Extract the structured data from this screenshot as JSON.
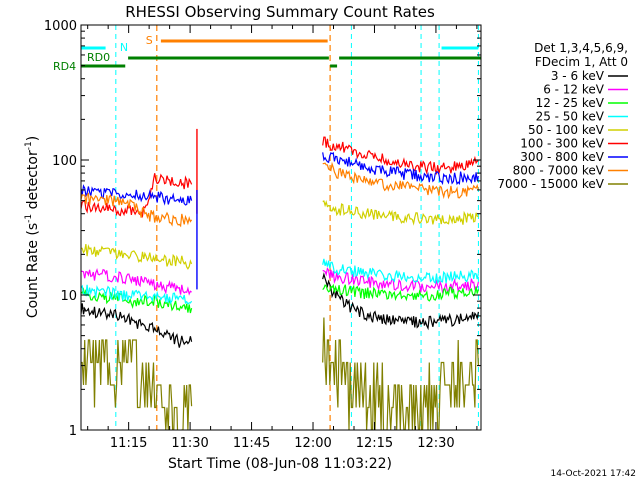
{
  "chart_data": {
    "type": "line",
    "title": "RHESSI Observing Summary Count Rates",
    "xlabel": "Start Time (08-Jun-08 11:03:22)",
    "ylabel_main": "Count Rate (s",
    "ylabel_sup1": "-1",
    "ylabel_mid": " detector",
    "ylabel_sup2": "-1",
    "ylabel_end": ")",
    "yscale": "log",
    "xlim": [
      "11:03:22",
      "12:41:00"
    ],
    "ylim": [
      1,
      1000
    ],
    "x_ticks": [
      "11:15",
      "11:30",
      "11:45",
      "12:00",
      "12:15",
      "12:30"
    ],
    "y_ticks": [
      "1",
      "10",
      "100",
      "1000"
    ],
    "legend_header": [
      "Det 1,3,4,5,6,9,",
      "FDecim 1, Att 0"
    ],
    "legend_position": "right",
    "timestamp": "14-Oct-2021 17:42",
    "flag_labels": {
      "n": "N",
      "s": "S",
      "rd0": "RD0",
      "rd4": "RD4"
    },
    "colors": {
      "n_flag": "#00ffff",
      "s_flag": "#ff8000",
      "rd_flag": "#008000",
      "axis": "#000000"
    },
    "series": [
      {
        "name": "3 - 6 keV",
        "color": "#000000",
        "segments": [
          {
            "x": [
              0,
              3,
              6,
              9,
              12,
              15,
              18,
              21,
              24,
              27
            ],
            "y": [
              8,
              7.5,
              7.2,
              7,
              6.5,
              6,
              5.5,
              5,
              4.5,
              4.5
            ]
          },
          {
            "x": [
              59,
              61,
              63,
              66,
              70,
              75,
              80,
              85,
              90,
              95,
              97
            ],
            "y": [
              14,
              11,
              9.5,
              8,
              7,
              6.5,
              6.3,
              6.3,
              6.5,
              6.8,
              7.5
            ]
          }
        ]
      },
      {
        "name": "6 - 12 keV",
        "color": "#ff00ff",
        "segments": [
          {
            "x": [
              0,
              3,
              6,
              9,
              12,
              15,
              18,
              21,
              24,
              27
            ],
            "y": [
              15,
              14,
              14,
              13.5,
              13,
              12.5,
              12,
              11.5,
              11,
              10.5
            ]
          },
          {
            "x": [
              59,
              61,
              63,
              66,
              70,
              75,
              80,
              85,
              90,
              95,
              97
            ],
            "y": [
              15,
              14,
              13.5,
              13,
              12.5,
              12,
              11.5,
              11.5,
              11.5,
              12,
              12.5
            ]
          }
        ]
      },
      {
        "name": "12 - 25 keV",
        "color": "#00ff00",
        "segments": [
          {
            "x": [
              0,
              3,
              6,
              9,
              12,
              15,
              18,
              21,
              24,
              27
            ],
            "y": [
              10,
              10,
              9.5,
              9.5,
              9,
              9,
              9,
              8.5,
              8.5,
              8
            ]
          },
          {
            "x": [
              59,
              61,
              63,
              66,
              70,
              75,
              80,
              85,
              90,
              95,
              97
            ],
            "y": [
              12,
              11.5,
              11,
              10.5,
              10.3,
              10,
              10,
              10,
              10.3,
              10.5,
              11
            ]
          }
        ]
      },
      {
        "name": "25 - 50 keV",
        "color": "#00ffff",
        "segments": [
          {
            "x": [
              0,
              3,
              6,
              9,
              12,
              15,
              18,
              21,
              24,
              27
            ],
            "y": [
              11,
              10.5,
              10.5,
              10,
              10,
              10,
              9.8,
              9.5,
              9.5,
              9
            ]
          },
          {
            "x": [
              59,
              61,
              63,
              66,
              70,
              75,
              80,
              85,
              90,
              95,
              97
            ],
            "y": [
              17,
              16,
              15.5,
              15,
              14.5,
              14,
              13.5,
              13.5,
              13.5,
              14,
              14.5
            ]
          }
        ]
      },
      {
        "name": "50 - 100 keV",
        "color": "#d0d000",
        "segments": [
          {
            "x": [
              0,
              3,
              6,
              9,
              12,
              15,
              18,
              21,
              24,
              27
            ],
            "y": [
              22,
              21,
              21,
              20,
              20,
              19,
              19,
              18,
              18,
              17
            ]
          },
          {
            "x": [
              59,
              61,
              63,
              66,
              70,
              75,
              80,
              85,
              90,
              95,
              97
            ],
            "y": [
              45,
              44,
              43,
              42,
              40,
              38,
              37,
              36,
              36,
              37,
              38
            ]
          }
        ]
      },
      {
        "name": "100 - 300 keV",
        "color": "#ff0000",
        "segments": [
          {
            "x": [
              0,
              3,
              6,
              9,
              12,
              15,
              18,
              21,
              24,
              27
            ],
            "y": [
              46,
              45,
              44,
              43,
              42,
              40,
              72,
              70,
              68,
              66
            ]
          },
          {
            "x": [
              59,
              61,
              63,
              66,
              70,
              75,
              80,
              85,
              90,
              95,
              97
            ],
            "y": [
              135,
              130,
              125,
              118,
              110,
              100,
              92,
              88,
              88,
              92,
              98
            ]
          }
        ]
      },
      {
        "name": "300 - 800 keV",
        "color": "#0000ff",
        "segments": [
          {
            "x": [
              0,
              3,
              6,
              9,
              12,
              15,
              18,
              21,
              24,
              27
            ],
            "y": [
              58,
              58,
              57,
              57,
              56,
              55,
              54,
              52,
              50,
              50
            ]
          },
          {
            "x": [
              59,
              61,
              63,
              66,
              70,
              75,
              80,
              85,
              90,
              95,
              97
            ],
            "y": [
              110,
              105,
              100,
              95,
              88,
              82,
              78,
              75,
              74,
              74,
              76
            ]
          }
        ]
      },
      {
        "name": "800 - 7000 keV",
        "color": "#ff8000",
        "segments": [
          {
            "x": [
              0,
              3,
              6,
              9,
              12,
              15,
              18,
              21,
              24,
              27
            ],
            "y": [
              52,
              51,
              50,
              50,
              48,
              40,
              38,
              37,
              36,
              36
            ]
          },
          {
            "x": [
              59,
              61,
              63,
              66,
              70,
              75,
              80,
              85,
              90,
              95,
              97
            ],
            "y": [
              88,
              85,
              80,
              75,
              70,
              65,
              62,
              60,
              58,
              58,
              60
            ]
          }
        ]
      },
      {
        "name": "7000 - 15000 keV",
        "color": "#808000",
        "segments": [
          {
            "x": [
              0,
              3,
              6,
              9,
              12,
              15,
              18,
              21,
              24,
              27
            ],
            "y": [
              3.5,
              3,
              3.5,
              3,
              3.5,
              2,
              1.5,
              1.5,
              1.3,
              1.5
            ]
          },
          {
            "x": [
              59,
              61,
              63,
              66,
              70,
              75,
              80,
              85,
              90,
              95,
              97
            ],
            "y": [
              3.5,
              3,
              2.5,
              2,
              1.5,
              1.5,
              1.3,
              1.5,
              2,
              2.5,
              3
            ]
          }
        ]
      }
    ],
    "spikes": [
      {
        "x": 28.3,
        "y_from": 40,
        "y_to": 170,
        "color": "#ff0000"
      },
      {
        "x": 28.3,
        "y_from": 11,
        "y_to": 60,
        "color": "#0000ff"
      }
    ],
    "flags": {
      "n_lines": [
        0,
        8.5,
        66,
        83,
        87.4,
        97
      ],
      "n_bars": [
        [
          0,
          6
        ],
        [
          88,
          97
        ]
      ],
      "s_lines": [
        18.5,
        60.8
      ],
      "s_bar": [
        19.5,
        60.2
      ],
      "rd0_bars": [
        [
          11.5,
          60.5
        ],
        [
          63,
          98
        ]
      ],
      "rd4_bars": [
        [
          0,
          10.8
        ],
        [
          60.8,
          62.5
        ]
      ]
    }
  }
}
